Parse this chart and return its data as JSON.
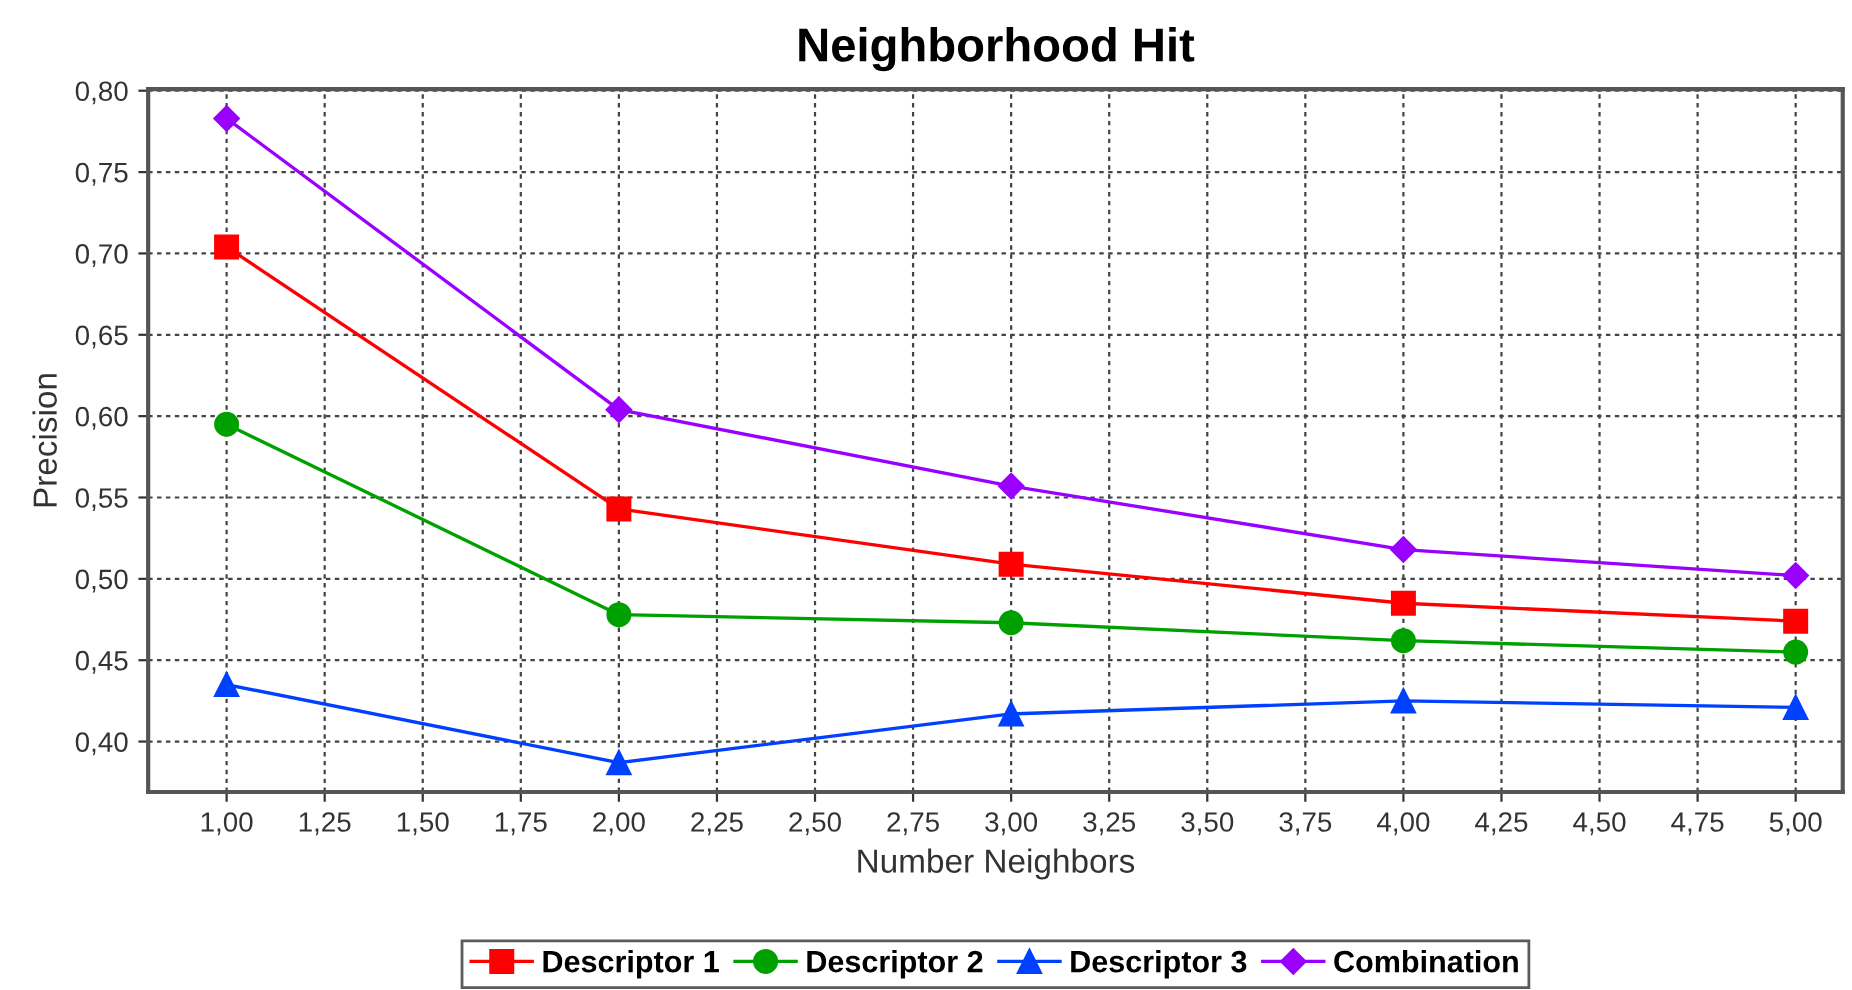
{
  "chart_data": {
    "type": "line",
    "title": "Neighborhood Hit",
    "xlabel": "Number Neighbors",
    "ylabel": "Precision",
    "x": [
      1,
      2,
      3,
      4,
      5
    ],
    "series": [
      {
        "name": "Descriptor 1",
        "color": "#ff0000",
        "marker": "square",
        "values": [
          0.704,
          0.543,
          0.509,
          0.485,
          0.474
        ]
      },
      {
        "name": "Descriptor 2",
        "color": "#00a000",
        "marker": "circle",
        "values": [
          0.595,
          0.478,
          0.473,
          0.462,
          0.455
        ]
      },
      {
        "name": "Descriptor 3",
        "color": "#0040ff",
        "marker": "triangle",
        "values": [
          0.435,
          0.387,
          0.417,
          0.425,
          0.421
        ]
      },
      {
        "name": "Combination",
        "color": "#9a00ff",
        "marker": "diamond",
        "values": [
          0.783,
          0.604,
          0.557,
          0.518,
          0.502
        ]
      }
    ],
    "xlim": [
      0.8,
      5.12
    ],
    "ylim": [
      0.369,
      0.801
    ],
    "xticks": [
      {
        "value": 1,
        "label": "1,00"
      },
      {
        "value": 1.25,
        "label": "1,25"
      },
      {
        "value": 1.5,
        "label": "1,50"
      },
      {
        "value": 1.75,
        "label": "1,75"
      },
      {
        "value": 2,
        "label": "2,00"
      },
      {
        "value": 2.25,
        "label": "2,25"
      },
      {
        "value": 2.5,
        "label": "2,50"
      },
      {
        "value": 2.75,
        "label": "2,75"
      },
      {
        "value": 3,
        "label": "3,00"
      },
      {
        "value": 3.25,
        "label": "3,25"
      },
      {
        "value": 3.5,
        "label": "3,50"
      },
      {
        "value": 3.75,
        "label": "3,75"
      },
      {
        "value": 4,
        "label": "4,00"
      },
      {
        "value": 4.25,
        "label": "4,25"
      },
      {
        "value": 4.5,
        "label": "4,50"
      },
      {
        "value": 4.75,
        "label": "4,75"
      },
      {
        "value": 5,
        "label": "5,00"
      }
    ],
    "yticks": [
      {
        "value": 0.4,
        "label": "0,40"
      },
      {
        "value": 0.45,
        "label": "0,45"
      },
      {
        "value": 0.5,
        "label": "0,50"
      },
      {
        "value": 0.55,
        "label": "0,55"
      },
      {
        "value": 0.6,
        "label": "0,60"
      },
      {
        "value": 0.65,
        "label": "0,65"
      },
      {
        "value": 0.7,
        "label": "0,70"
      },
      {
        "value": 0.75,
        "label": "0,75"
      },
      {
        "value": 0.8,
        "label": "0,80"
      }
    ],
    "grid": true,
    "legend": "bottom",
    "line_style": "solid"
  }
}
